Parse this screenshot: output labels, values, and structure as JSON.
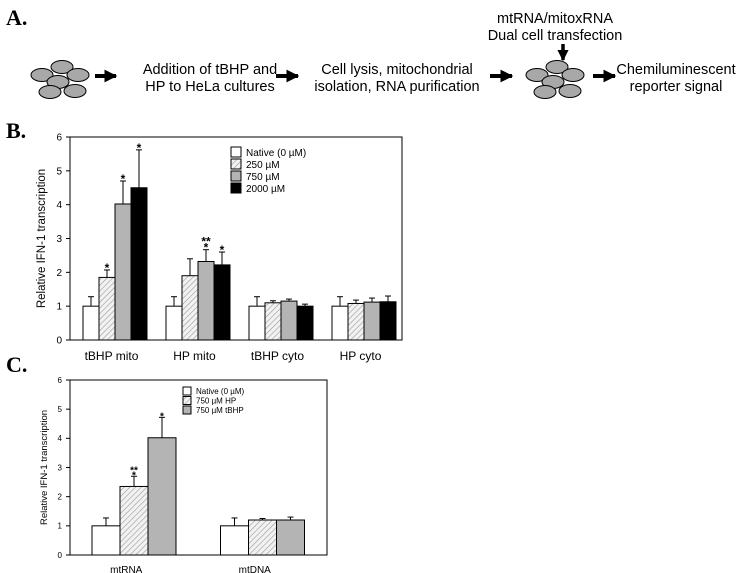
{
  "panels": {
    "a": "A.",
    "b": "B.",
    "c": "C."
  },
  "workflow": {
    "step1_line1": "Addition of tBHP and",
    "step1_line2": "HP to HeLa cultures",
    "step2_line1": "Cell lysis, mitochondrial",
    "step2_line2": "isolation, RNA purification",
    "transfection_line1": "mtRNA/mitoxRNA",
    "transfection_line2": "Dual cell transfection",
    "step4_line1": "Chemiluminescent",
    "step4_line2": "reporter signal"
  },
  "colors": {
    "native": "#ffffff",
    "c250": "#e8e8e8",
    "c750": "#b4b4b4",
    "c2000": "#000000",
    "cell": "#a8a8a8"
  },
  "chart_data": [
    {
      "type": "bar",
      "panel": "B",
      "ylabel": "Relative IFN-1 transcription",
      "ylim": [
        0,
        6
      ],
      "yticks": [
        "0",
        "1",
        "2",
        "3",
        "4",
        "5",
        "6"
      ],
      "categories": [
        "tBHP mito",
        "HP mito",
        "tBHP cyto",
        "HP cyto"
      ],
      "legend_position": "top-right",
      "series": [
        {
          "name": "Native (0 µM)",
          "values": [
            1.0,
            1.0,
            1.0,
            1.0
          ],
          "errors": [
            0.28,
            0.28,
            0.28,
            0.28
          ]
        },
        {
          "name": "250 µM",
          "values": [
            1.85,
            1.9,
            1.1,
            1.08
          ],
          "errors": [
            0.22,
            0.5,
            0.06,
            0.1
          ]
        },
        {
          "name": "750 µM",
          "values": [
            4.02,
            2.32,
            1.15,
            1.12
          ],
          "errors": [
            0.68,
            0.35,
            0.06,
            0.12
          ]
        },
        {
          "name": "2000 µM",
          "values": [
            4.5,
            2.22,
            1.0,
            1.13
          ],
          "errors": [
            1.12,
            0.38,
            0.06,
            0.17
          ]
        }
      ],
      "annotations": [
        {
          "category": 0,
          "series": 1,
          "text": "*"
        },
        {
          "category": 0,
          "series": 2,
          "text": "*"
        },
        {
          "category": 0,
          "series": 3,
          "text": "*"
        },
        {
          "category": 1,
          "series": 2,
          "text": "**\n*"
        },
        {
          "category": 1,
          "series": 3,
          "text": "*"
        }
      ]
    },
    {
      "type": "bar",
      "panel": "C",
      "ylabel": "Relative IFN-1 transcription",
      "ylim": [
        0,
        6
      ],
      "yticks": [
        "0",
        "1",
        "2",
        "3",
        "4",
        "5",
        "6"
      ],
      "categories": [
        "mtRNA",
        "mtDNA"
      ],
      "legend_position": "top-left",
      "series": [
        {
          "name": "Native (0 µM)",
          "values": [
            1.0,
            1.0
          ],
          "errors": [
            0.27,
            0.27
          ]
        },
        {
          "name": "750 µM HP",
          "values": [
            2.35,
            1.2
          ],
          "errors": [
            0.35,
            0.05
          ]
        },
        {
          "name": "750 µM tBHP",
          "values": [
            4.02,
            1.2
          ],
          "errors": [
            0.7,
            0.1
          ]
        }
      ],
      "annotations": [
        {
          "category": 0,
          "series": 1,
          "text": "**\n*"
        },
        {
          "category": 0,
          "series": 2,
          "text": "*"
        }
      ]
    }
  ]
}
